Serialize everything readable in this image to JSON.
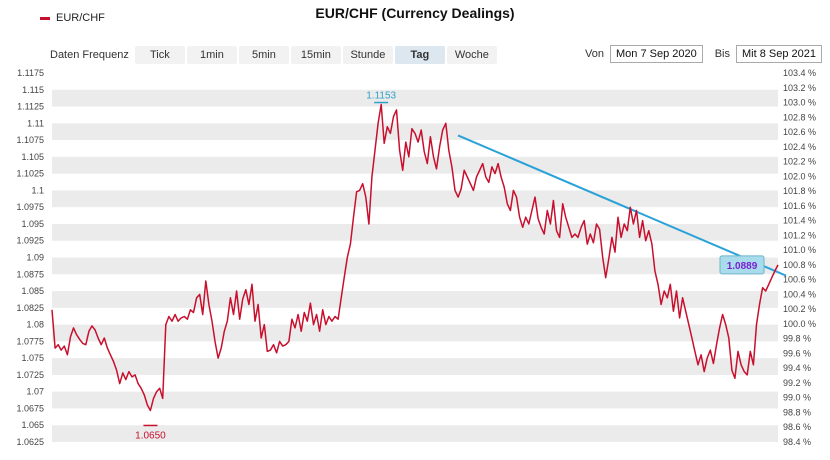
{
  "legend": {
    "label": "EUR/CHF",
    "color": "#c8102e"
  },
  "title": "EUR/CHF (Currency Dealings)",
  "toolbar": {
    "frequency_label": "Daten Frequenz",
    "buttons": [
      "Tick",
      "1min",
      "5min",
      "15min",
      "Stunde",
      "Tag",
      "Woche"
    ],
    "active": "Tag"
  },
  "daterange": {
    "from_label": "Von",
    "from_value": "Mon 7 Sep 2020",
    "to_label": "Bis",
    "to_value": "Mit 8 Sep 2021"
  },
  "chart_data": {
    "type": "line",
    "series": [
      {
        "name": "EUR/CHF",
        "color": "#c8102e",
        "values": [
          1.0822,
          1.0765,
          1.077,
          1.0762,
          1.0768,
          1.0755,
          1.0782,
          1.0795,
          1.0785,
          1.0778,
          1.0772,
          1.077,
          1.079,
          1.0798,
          1.0792,
          1.078,
          1.077,
          1.078,
          1.0765,
          1.0755,
          1.0745,
          1.0732,
          1.0712,
          1.0728,
          1.0718,
          1.073,
          1.0722,
          1.0725,
          1.0712,
          1.0705,
          1.0695,
          1.068,
          1.0672,
          1.069,
          1.07,
          1.0705,
          1.069,
          1.08,
          1.0812,
          1.0805,
          1.0815,
          1.0805,
          1.081,
          1.0812,
          1.0808,
          1.0822,
          1.0818,
          1.084,
          1.0845,
          1.0815,
          1.0865,
          1.083,
          1.0805,
          1.0775,
          1.075,
          1.0765,
          1.079,
          1.0805,
          1.084,
          1.0815,
          1.085,
          1.0808,
          1.0838,
          1.0852,
          1.083,
          1.086,
          1.0805,
          1.083,
          1.078,
          1.08,
          1.076,
          1.0762,
          1.077,
          1.0758,
          1.0775,
          1.0768,
          1.077,
          1.0775,
          1.0808,
          1.0795,
          1.0815,
          1.079,
          1.0818,
          1.0805,
          1.0832,
          1.08,
          1.0815,
          1.079,
          1.0822,
          1.08,
          1.0812,
          1.0805,
          1.0812,
          1.0808,
          1.084,
          1.087,
          1.09,
          1.092,
          1.096,
          1.0998,
          1.1,
          1.101,
          1.099,
          1.095,
          1.102,
          1.106,
          1.11,
          1.1128,
          1.107,
          1.1095,
          1.1085,
          1.111,
          1.112,
          1.106,
          1.103,
          1.1072,
          1.105,
          1.1092,
          1.1085,
          1.1072,
          1.109,
          1.1058,
          1.104,
          1.108,
          1.105,
          1.1032,
          1.1065,
          1.109,
          1.11,
          1.106,
          1.1035,
          1.1,
          1.099,
          1.1002,
          1.103,
          1.102,
          1.101,
          1.1,
          1.102,
          1.103,
          1.104,
          1.102,
          1.1012,
          1.1035,
          1.1025,
          1.104,
          1.102,
          1.1005,
          1.098,
          1.097,
          1.1,
          1.099,
          1.096,
          1.0945,
          1.096,
          1.095,
          1.097,
          1.099,
          1.0958,
          1.0945,
          1.0935,
          1.097,
          1.095,
          1.0985,
          1.094,
          1.093,
          1.098,
          1.096,
          1.0945,
          1.093,
          1.0935,
          1.093,
          1.0945,
          1.0955,
          1.092,
          1.0935,
          1.0922,
          1.095,
          1.0942,
          1.09,
          1.087,
          1.0898,
          1.093,
          1.0908,
          1.096,
          1.093,
          1.095,
          1.094,
          1.0975,
          1.095,
          1.097,
          1.093,
          1.0955,
          1.0925,
          1.094,
          1.092,
          1.088,
          1.086,
          1.083,
          1.085,
          1.084,
          1.086,
          1.082,
          1.085,
          1.081,
          1.084,
          1.082,
          1.08,
          1.078,
          1.076,
          1.074,
          1.0755,
          1.073,
          1.075,
          1.0762,
          1.0742,
          1.077,
          1.0795,
          1.0815,
          1.08,
          1.078,
          1.0732,
          1.072,
          1.076,
          1.074,
          1.073,
          1.0725,
          1.076,
          1.074,
          1.08,
          1.083,
          1.0855,
          1.085,
          1.086,
          1.087,
          1.088,
          1.0889
        ]
      }
    ],
    "annotations": [
      {
        "label": "1.1153",
        "value": 1.1153,
        "color": "#2ea0c8"
      },
      {
        "label": "1.0650",
        "value": 1.065,
        "color": "#c8102e"
      },
      {
        "label": "1.0889",
        "value": 1.0889,
        "color": "#7a1fd0"
      }
    ],
    "trendline": {
      "color": "#2aa2d8",
      "from": 1.1082,
      "to": 1.0873
    },
    "y_left": {
      "min": 1.0625,
      "max": 1.1175,
      "ticks": [
        "1.1175",
        "1.115",
        "1.1125",
        "1.11",
        "1.1075",
        "1.105",
        "1.1025",
        "1.1",
        "1.0975",
        "1.095",
        "1.0925",
        "1.09",
        "1.0875",
        "1.085",
        "1.0825",
        "1.08",
        "1.0775",
        "1.075",
        "1.0725",
        "1.07",
        "1.0675",
        "1.065",
        "1.0625"
      ]
    },
    "y_right": {
      "min": 98.4,
      "max": 103.4,
      "ticks": [
        "103.4 %",
        "103.2 %",
        "103.0 %",
        "102.8 %",
        "102.6 %",
        "102.4 %",
        "102.2 %",
        "102.0 %",
        "101.8 %",
        "101.6 %",
        "101.4 %",
        "101.2 %",
        "101.0 %",
        "100.8 %",
        "100.6 %",
        "100.4 %",
        "100.2 %",
        "100.0 %",
        "99.8 %",
        "99.6 %",
        "99.4 %",
        "99.2 %",
        "99.0 %",
        "98.8 %",
        "98.6 %",
        "98.4 %"
      ]
    },
    "band_color": "#ebebeb",
    "grid": true
  }
}
